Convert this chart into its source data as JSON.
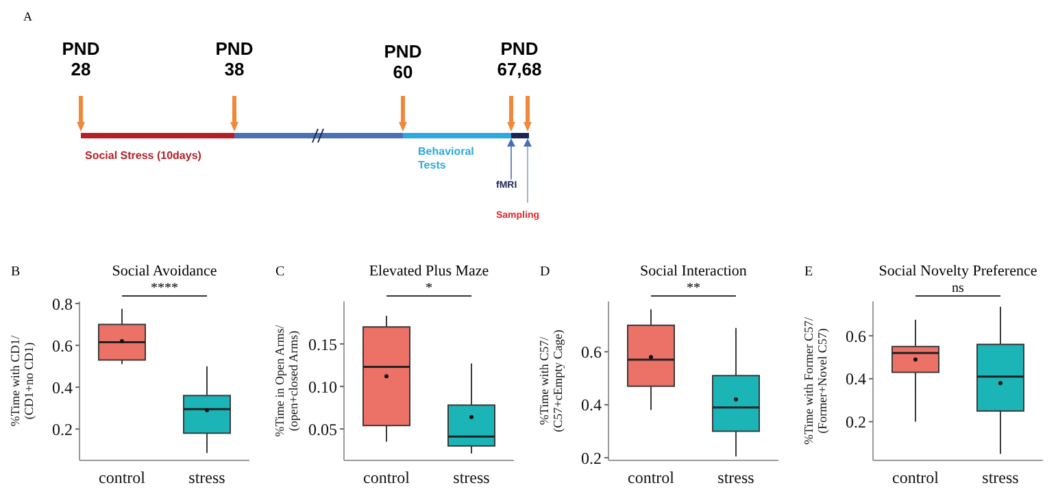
{
  "chart_data": [
    {
      "type": "other",
      "annotations": [
        "A",
        "PND\n28",
        "PND\n38",
        "PND\n60",
        "PND\n67,68",
        "Social Stress (10days)",
        "Behavioral\nTests",
        "fMRI",
        "Sampling"
      ]
    },
    {
      "type": "box",
      "title": "Social Avoidance",
      "ylabel": "%Time with CD1/\n(CD1+no CD1)",
      "categories": [
        "control",
        "stress"
      ],
      "colors": [
        "#ec7167",
        "#1bb5b8"
      ],
      "boxes": [
        {
          "low": 0.51,
          "q1": 0.53,
          "median": 0.615,
          "q3": 0.7,
          "high": 0.775,
          "mean": 0.62
        },
        {
          "low": 0.085,
          "q1": 0.18,
          "median": 0.295,
          "q3": 0.36,
          "high": 0.5,
          "mean": 0.29
        }
      ],
      "ylim": [
        0.05,
        0.81
      ],
      "yticks": [
        0.2,
        0.4,
        0.6,
        0.8
      ],
      "annotations": [
        "B",
        "****"
      ]
    },
    {
      "type": "box",
      "title": "Elevated Plus Maze",
      "ylabel": "%Time in Open Arms/\n(open+closed Arms)",
      "categories": [
        "control",
        "stress"
      ],
      "colors": [
        "#ec7167",
        "#1bb5b8"
      ],
      "boxes": [
        {
          "low": 0.035,
          "q1": 0.054,
          "median": 0.123,
          "q3": 0.17,
          "high": 0.183,
          "mean": 0.112
        },
        {
          "low": 0.021,
          "q1": 0.03,
          "median": 0.041,
          "q3": 0.078,
          "high": 0.127,
          "mean": 0.064
        }
      ],
      "ylim": [
        0.013,
        0.2
      ],
      "yticks": [
        0.05,
        {
          "value": 0.1,
          "label": "0.10"
        },
        0.15
      ],
      "annotations": [
        "C",
        "*"
      ]
    },
    {
      "type": "box",
      "title": "Social Interaction",
      "ylabel": "%Time with C57/\n(C57+cEmpty Cage)",
      "categories": [
        "control",
        "stress"
      ],
      "colors": [
        "#ec7167",
        "#1bb5b8"
      ],
      "boxes": [
        {
          "low": 0.38,
          "q1": 0.47,
          "median": 0.57,
          "q3": 0.7,
          "high": 0.76,
          "mean": 0.58
        },
        {
          "low": 0.205,
          "q1": 0.3,
          "median": 0.39,
          "q3": 0.51,
          "high": 0.69,
          "mean": 0.42
        }
      ],
      "ylim": [
        0.19,
        0.79
      ],
      "yticks": [
        0.2,
        0.4,
        0.6
      ],
      "annotations": [
        "D",
        "**"
      ]
    },
    {
      "type": "box",
      "title": "Social Novelty Preference",
      "ylabel": "%Time with Former C57/\n(Former+Novel C57)",
      "categories": [
        "control",
        "stress"
      ],
      "colors": [
        "#ec7167",
        "#1bb5b8"
      ],
      "boxes": [
        {
          "low": 0.2,
          "q1": 0.43,
          "median": 0.52,
          "q3": 0.55,
          "high": 0.675,
          "mean": 0.49
        },
        {
          "low": 0.05,
          "q1": 0.25,
          "median": 0.41,
          "q3": 0.56,
          "high": 0.735,
          "mean": 0.38
        }
      ],
      "ylim": [
        0.02,
        0.76
      ],
      "yticks": [
        0.2,
        0.4,
        0.6
      ],
      "annotations": [
        "E",
        "ns"
      ]
    }
  ]
}
